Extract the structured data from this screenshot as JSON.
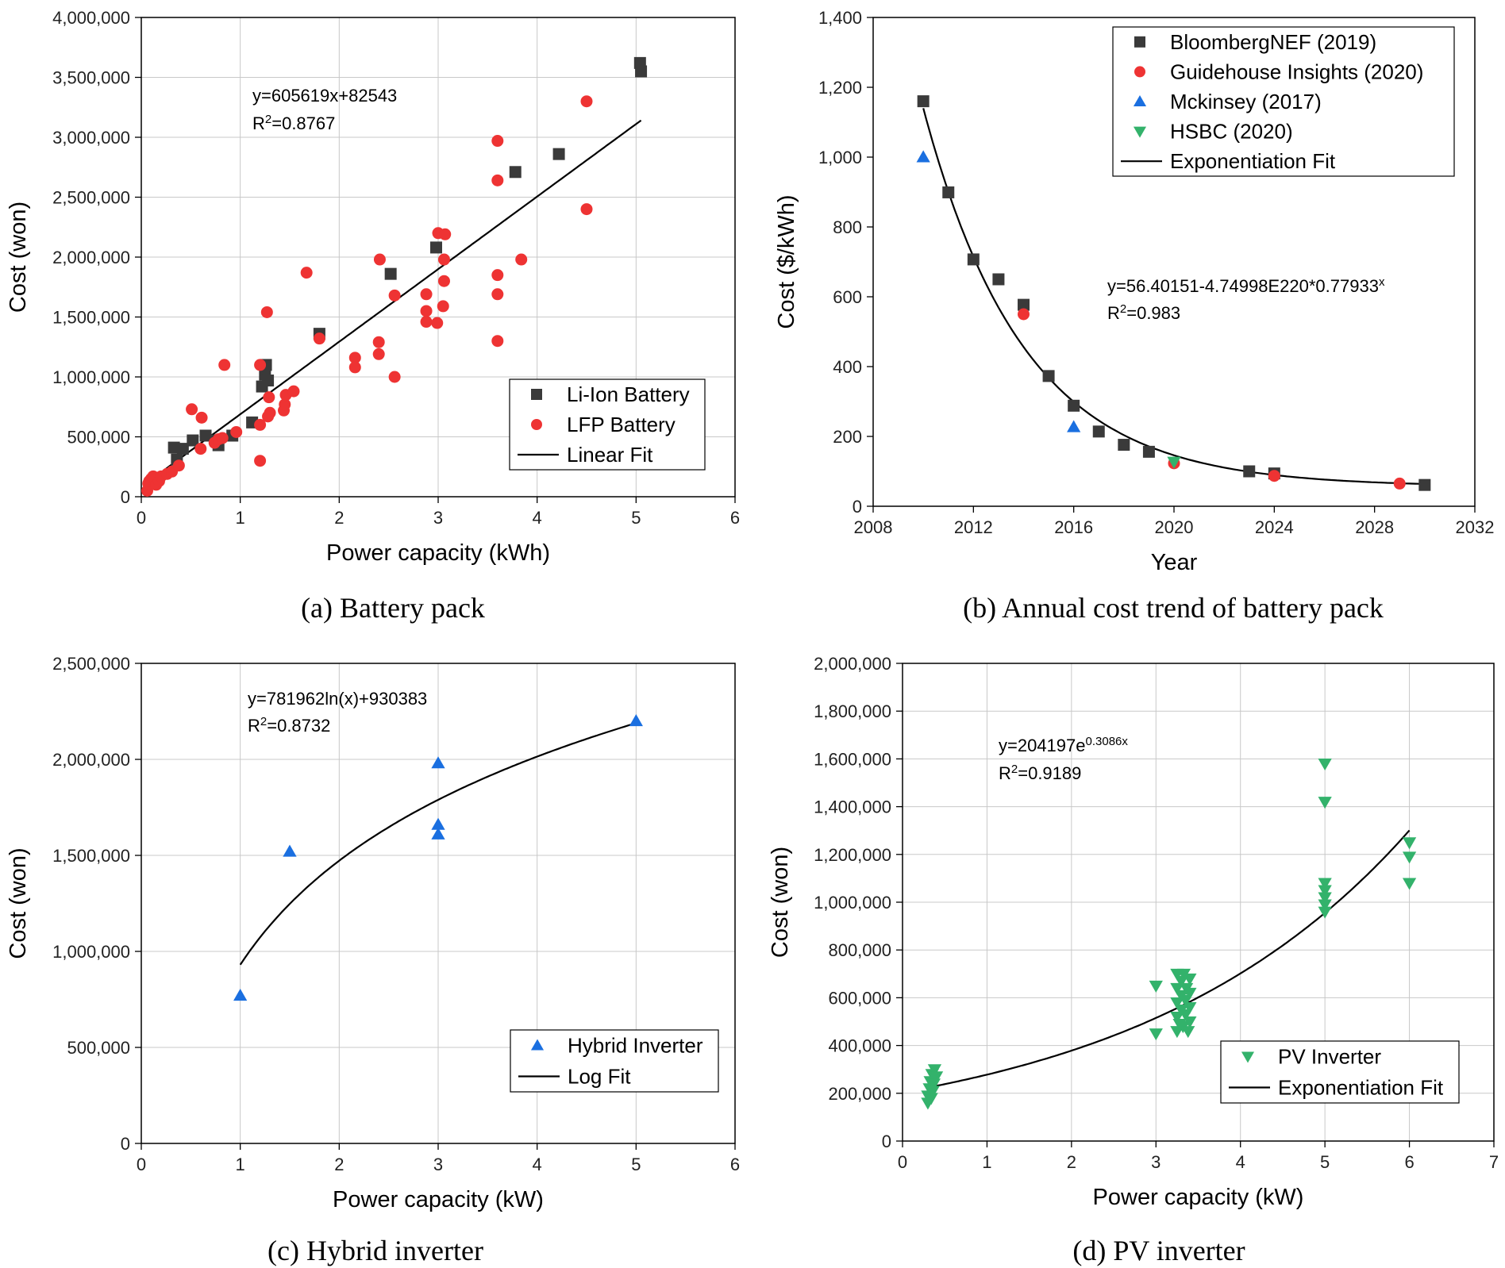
{
  "chart_data": [
    {
      "id": "a",
      "type": "scatter",
      "caption": "(a) Battery pack",
      "xlabel": "Power capacity (kWh)",
      "ylabel": "Cost (won)",
      "xlim": [
        0,
        6
      ],
      "ylim": [
        0,
        4000000
      ],
      "xticks": [
        0,
        1,
        2,
        3,
        4,
        5,
        6
      ],
      "yticks": [
        0,
        500000,
        1000000,
        1500000,
        2000000,
        2500000,
        3000000,
        3500000,
        4000000
      ],
      "xtick_labels": [
        "0",
        "1",
        "2",
        "3",
        "4",
        "5",
        "6"
      ],
      "ytick_labels": [
        "0",
        "500,000",
        "1,000,000",
        "1,500,000",
        "2,000,000",
        "2,500,000",
        "3,000,000",
        "3,500,000",
        "4,000,000"
      ],
      "grid": true,
      "equation": "y=605619x+82543",
      "r2_prefix": "R",
      "r2_value": "=0.8767",
      "legend_position": "bottom-right",
      "series": [
        {
          "name": "Li-Ion Battery",
          "marker": "square",
          "color": "#3a3a3a",
          "points": [
            [
              0.33,
              410000
            ],
            [
              0.36,
              310000
            ],
            [
              0.42,
              400000
            ],
            [
              0.52,
              470000
            ],
            [
              0.65,
              510000
            ],
            [
              0.75,
              470000
            ],
            [
              0.78,
              430000
            ],
            [
              0.92,
              510000
            ],
            [
              1.12,
              620000
            ],
            [
              1.22,
              920000
            ],
            [
              1.25,
              1020000
            ],
            [
              1.26,
              1100000
            ],
            [
              1.28,
              970000
            ],
            [
              1.8,
              1360000
            ],
            [
              2.52,
              1860000
            ],
            [
              2.98,
              2080000
            ],
            [
              3.78,
              2710000
            ],
            [
              4.22,
              2860000
            ],
            [
              5.04,
              3620000
            ],
            [
              5.05,
              3550000
            ]
          ]
        },
        {
          "name": "LFP Battery",
          "marker": "circle",
          "color": "#ee3333",
          "points": [
            [
              0.06,
              50000
            ],
            [
              0.07,
              110000
            ],
            [
              0.08,
              130000
            ],
            [
              0.1,
              150000
            ],
            [
              0.12,
              170000
            ],
            [
              0.15,
              100000
            ],
            [
              0.18,
              130000
            ],
            [
              0.2,
              170000
            ],
            [
              0.26,
              190000
            ],
            [
              0.31,
              210000
            ],
            [
              0.38,
              260000
            ],
            [
              0.51,
              730000
            ],
            [
              0.6,
              400000
            ],
            [
              0.61,
              660000
            ],
            [
              0.74,
              450000
            ],
            [
              0.78,
              480000
            ],
            [
              0.82,
              490000
            ],
            [
              0.84,
              1100000
            ],
            [
              0.96,
              540000
            ],
            [
              1.2,
              300000
            ],
            [
              1.2,
              600000
            ],
            [
              1.2,
              1100000
            ],
            [
              1.27,
              1540000
            ],
            [
              1.28,
              670000
            ],
            [
              1.29,
              830000
            ],
            [
              1.3,
              700000
            ],
            [
              1.44,
              720000
            ],
            [
              1.45,
              770000
            ],
            [
              1.46,
              850000
            ],
            [
              1.54,
              880000
            ],
            [
              1.67,
              1870000
            ],
            [
              1.8,
              1320000
            ],
            [
              2.16,
              1160000
            ],
            [
              2.16,
              1080000
            ],
            [
              2.4,
              1190000
            ],
            [
              2.4,
              1290000
            ],
            [
              2.41,
              1980000
            ],
            [
              2.56,
              1000000
            ],
            [
              2.56,
              1680000
            ],
            [
              2.88,
              1690000
            ],
            [
              2.88,
              1550000
            ],
            [
              2.88,
              1460000
            ],
            [
              2.99,
              1450000
            ],
            [
              3.0,
              2200000
            ],
            [
              3.05,
              1590000
            ],
            [
              3.06,
              1800000
            ],
            [
              3.06,
              1980000
            ],
            [
              3.07,
              2190000
            ],
            [
              3.6,
              1300000
            ],
            [
              3.6,
              1690000
            ],
            [
              3.6,
              1850000
            ],
            [
              3.6,
              2640000
            ],
            [
              3.6,
              2970000
            ],
            [
              3.84,
              1980000
            ],
            [
              4.5,
              2400000
            ],
            [
              4.5,
              3300000
            ]
          ]
        }
      ],
      "fit": {
        "name": "Linear Fit",
        "kind": "linear",
        "a": 82543,
        "b": 605619,
        "xrange": [
          0.1,
          5.05
        ]
      }
    },
    {
      "id": "b",
      "type": "scatter",
      "caption": "(b) Annual cost trend of battery pack",
      "xlabel": "Year",
      "ylabel": "Cost ($/kWh)",
      "xlim": [
        2008,
        2032
      ],
      "ylim": [
        0,
        1400
      ],
      "xticks": [
        2008,
        2012,
        2016,
        2020,
        2024,
        2028,
        2032
      ],
      "yticks": [
        0,
        200,
        400,
        600,
        800,
        1000,
        1200,
        1400
      ],
      "xtick_labels": [
        "2008",
        "2012",
        "2016",
        "2020",
        "2024",
        "2028",
        "2032"
      ],
      "ytick_labels": [
        "0",
        "200",
        "400",
        "600",
        "800",
        "1,000",
        "1,200",
        "1,400"
      ],
      "grid": false,
      "equation": "y=56.40151-4.74998E220*0.77933",
      "equation_sup": "x",
      "r2_prefix": "R",
      "r2_value": "=0.983",
      "legend_position": "top-right",
      "series": [
        {
          "name": "BloombergNEF (2019)",
          "marker": "square",
          "color": "#3a3a3a",
          "points": [
            [
              2010,
              1160
            ],
            [
              2011,
              899
            ],
            [
              2012,
              707
            ],
            [
              2013,
              650
            ],
            [
              2014,
              577
            ],
            [
              2015,
              373
            ],
            [
              2016,
              288
            ],
            [
              2017,
              214
            ],
            [
              2018,
              176
            ],
            [
              2019,
              156
            ],
            [
              2023,
              100
            ],
            [
              2024,
              94
            ],
            [
              2030,
              61
            ]
          ]
        },
        {
          "name": "Guidehouse Insights (2020)",
          "marker": "circle",
          "color": "#ee3333",
          "points": [
            [
              2014,
              550
            ],
            [
              2020,
              123
            ],
            [
              2024,
              87
            ],
            [
              2029,
              65
            ]
          ]
        },
        {
          "name": "Mckinsey (2017)",
          "marker": "triangle-up",
          "color": "#1a6fe0",
          "points": [
            [
              2010,
              1000
            ],
            [
              2016,
              227
            ]
          ]
        },
        {
          "name": "HSBC (2020)",
          "marker": "triangle-down",
          "color": "#33b26b",
          "points": [
            [
              2020,
              127
            ]
          ]
        }
      ],
      "fit": {
        "name": "Exponentiation Fit",
        "kind": "exp_decay",
        "a": 56.40151,
        "x0": 2010,
        "y0": 1140,
        "base": 0.77933,
        "xrange": [
          2010,
          2030
        ]
      }
    },
    {
      "id": "c",
      "type": "scatter",
      "caption": "(c) Hybrid inverter",
      "xlabel": "Power capacity (kW)",
      "ylabel": "Cost (won)",
      "xlim": [
        0,
        6
      ],
      "ylim": [
        0,
        2500000
      ],
      "xticks": [
        0,
        1,
        2,
        3,
        4,
        5,
        6
      ],
      "yticks": [
        0,
        500000,
        1000000,
        1500000,
        2000000,
        2500000
      ],
      "xtick_labels": [
        "0",
        "1",
        "2",
        "3",
        "4",
        "5",
        "6"
      ],
      "ytick_labels": [
        "0",
        "500,000",
        "1,000,000",
        "1,500,000",
        "2,000,000",
        "2,500,000"
      ],
      "grid": true,
      "equation": "y=781962ln(x)+930383",
      "r2_prefix": "R",
      "r2_value": "=0.8732",
      "legend_position": "bottom-right",
      "series": [
        {
          "name": "Hybrid Inverter",
          "marker": "triangle-up",
          "color": "#1a6fe0",
          "points": [
            [
              1.0,
              770000
            ],
            [
              1.5,
              1520000
            ],
            [
              3.0,
              1980000
            ],
            [
              3.0,
              1660000
            ],
            [
              3.0,
              1610000
            ],
            [
              5.0,
              2200000
            ]
          ]
        }
      ],
      "fit": {
        "name": "Log Fit",
        "kind": "log",
        "a": 930383,
        "b": 781962,
        "xrange": [
          1.0,
          5.0
        ]
      }
    },
    {
      "id": "d",
      "type": "scatter",
      "caption": "(d) PV inverter",
      "xlabel": "Power capacity (kW)",
      "ylabel": "Cost (won)",
      "xlim": [
        0,
        7
      ],
      "ylim": [
        0,
        2000000
      ],
      "xticks": [
        0,
        1,
        2,
        3,
        4,
        5,
        6,
        7
      ],
      "yticks": [
        0,
        200000,
        400000,
        600000,
        800000,
        1000000,
        1200000,
        1400000,
        1600000,
        1800000,
        2000000
      ],
      "xtick_labels": [
        "0",
        "1",
        "2",
        "3",
        "4",
        "5",
        "6",
        "7"
      ],
      "ytick_labels": [
        "0",
        "200,000",
        "400,000",
        "600,000",
        "800,000",
        "1,000,000",
        "1,200,000",
        "1,400,000",
        "1,600,000",
        "1,800,000",
        "2,000,000"
      ],
      "grid": true,
      "equation": "y=204197e",
      "equation_sup": "0.3086x",
      "r2_prefix": "R",
      "r2_value": "=0.9189",
      "legend_position": "bottom-right",
      "series": [
        {
          "name": "PV Inverter",
          "marker": "triangle-down",
          "color": "#33b26b",
          "points": [
            [
              0.3,
              160000
            ],
            [
              0.3,
              190000
            ],
            [
              0.32,
              220000
            ],
            [
              0.33,
              250000
            ],
            [
              0.34,
              180000
            ],
            [
              0.35,
              280000
            ],
            [
              0.36,
              210000
            ],
            [
              0.37,
              240000
            ],
            [
              0.38,
              300000
            ],
            [
              0.4,
              270000
            ],
            [
              3.0,
              650000
            ],
            [
              3.0,
              450000
            ],
            [
              3.25,
              460000
            ],
            [
              3.25,
              520000
            ],
            [
              3.25,
              580000
            ],
            [
              3.25,
              640000
            ],
            [
              3.25,
              700000
            ],
            [
              3.28,
              490000
            ],
            [
              3.3,
              550000
            ],
            [
              3.3,
              610000
            ],
            [
              3.3,
              670000
            ],
            [
              3.32,
              480000
            ],
            [
              3.33,
              700000
            ],
            [
              3.35,
              530000
            ],
            [
              3.35,
              590000
            ],
            [
              3.36,
              640000
            ],
            [
              3.38,
              460000
            ],
            [
              3.4,
              500000
            ],
            [
              3.4,
              560000
            ],
            [
              3.4,
              620000
            ],
            [
              3.4,
              680000
            ],
            [
              5.0,
              1580000
            ],
            [
              5.0,
              1420000
            ],
            [
              5.0,
              1080000
            ],
            [
              5.0,
              1050000
            ],
            [
              5.0,
              1020000
            ],
            [
              5.0,
              990000
            ],
            [
              5.0,
              960000
            ],
            [
              6.0,
              1250000
            ],
            [
              6.0,
              1190000
            ],
            [
              6.0,
              1080000
            ]
          ]
        }
      ],
      "fit": {
        "name": "Exponentiation Fit",
        "kind": "exp",
        "a": 204197,
        "b": 0.3086,
        "xrange": [
          0.35,
          6.0
        ]
      }
    }
  ]
}
